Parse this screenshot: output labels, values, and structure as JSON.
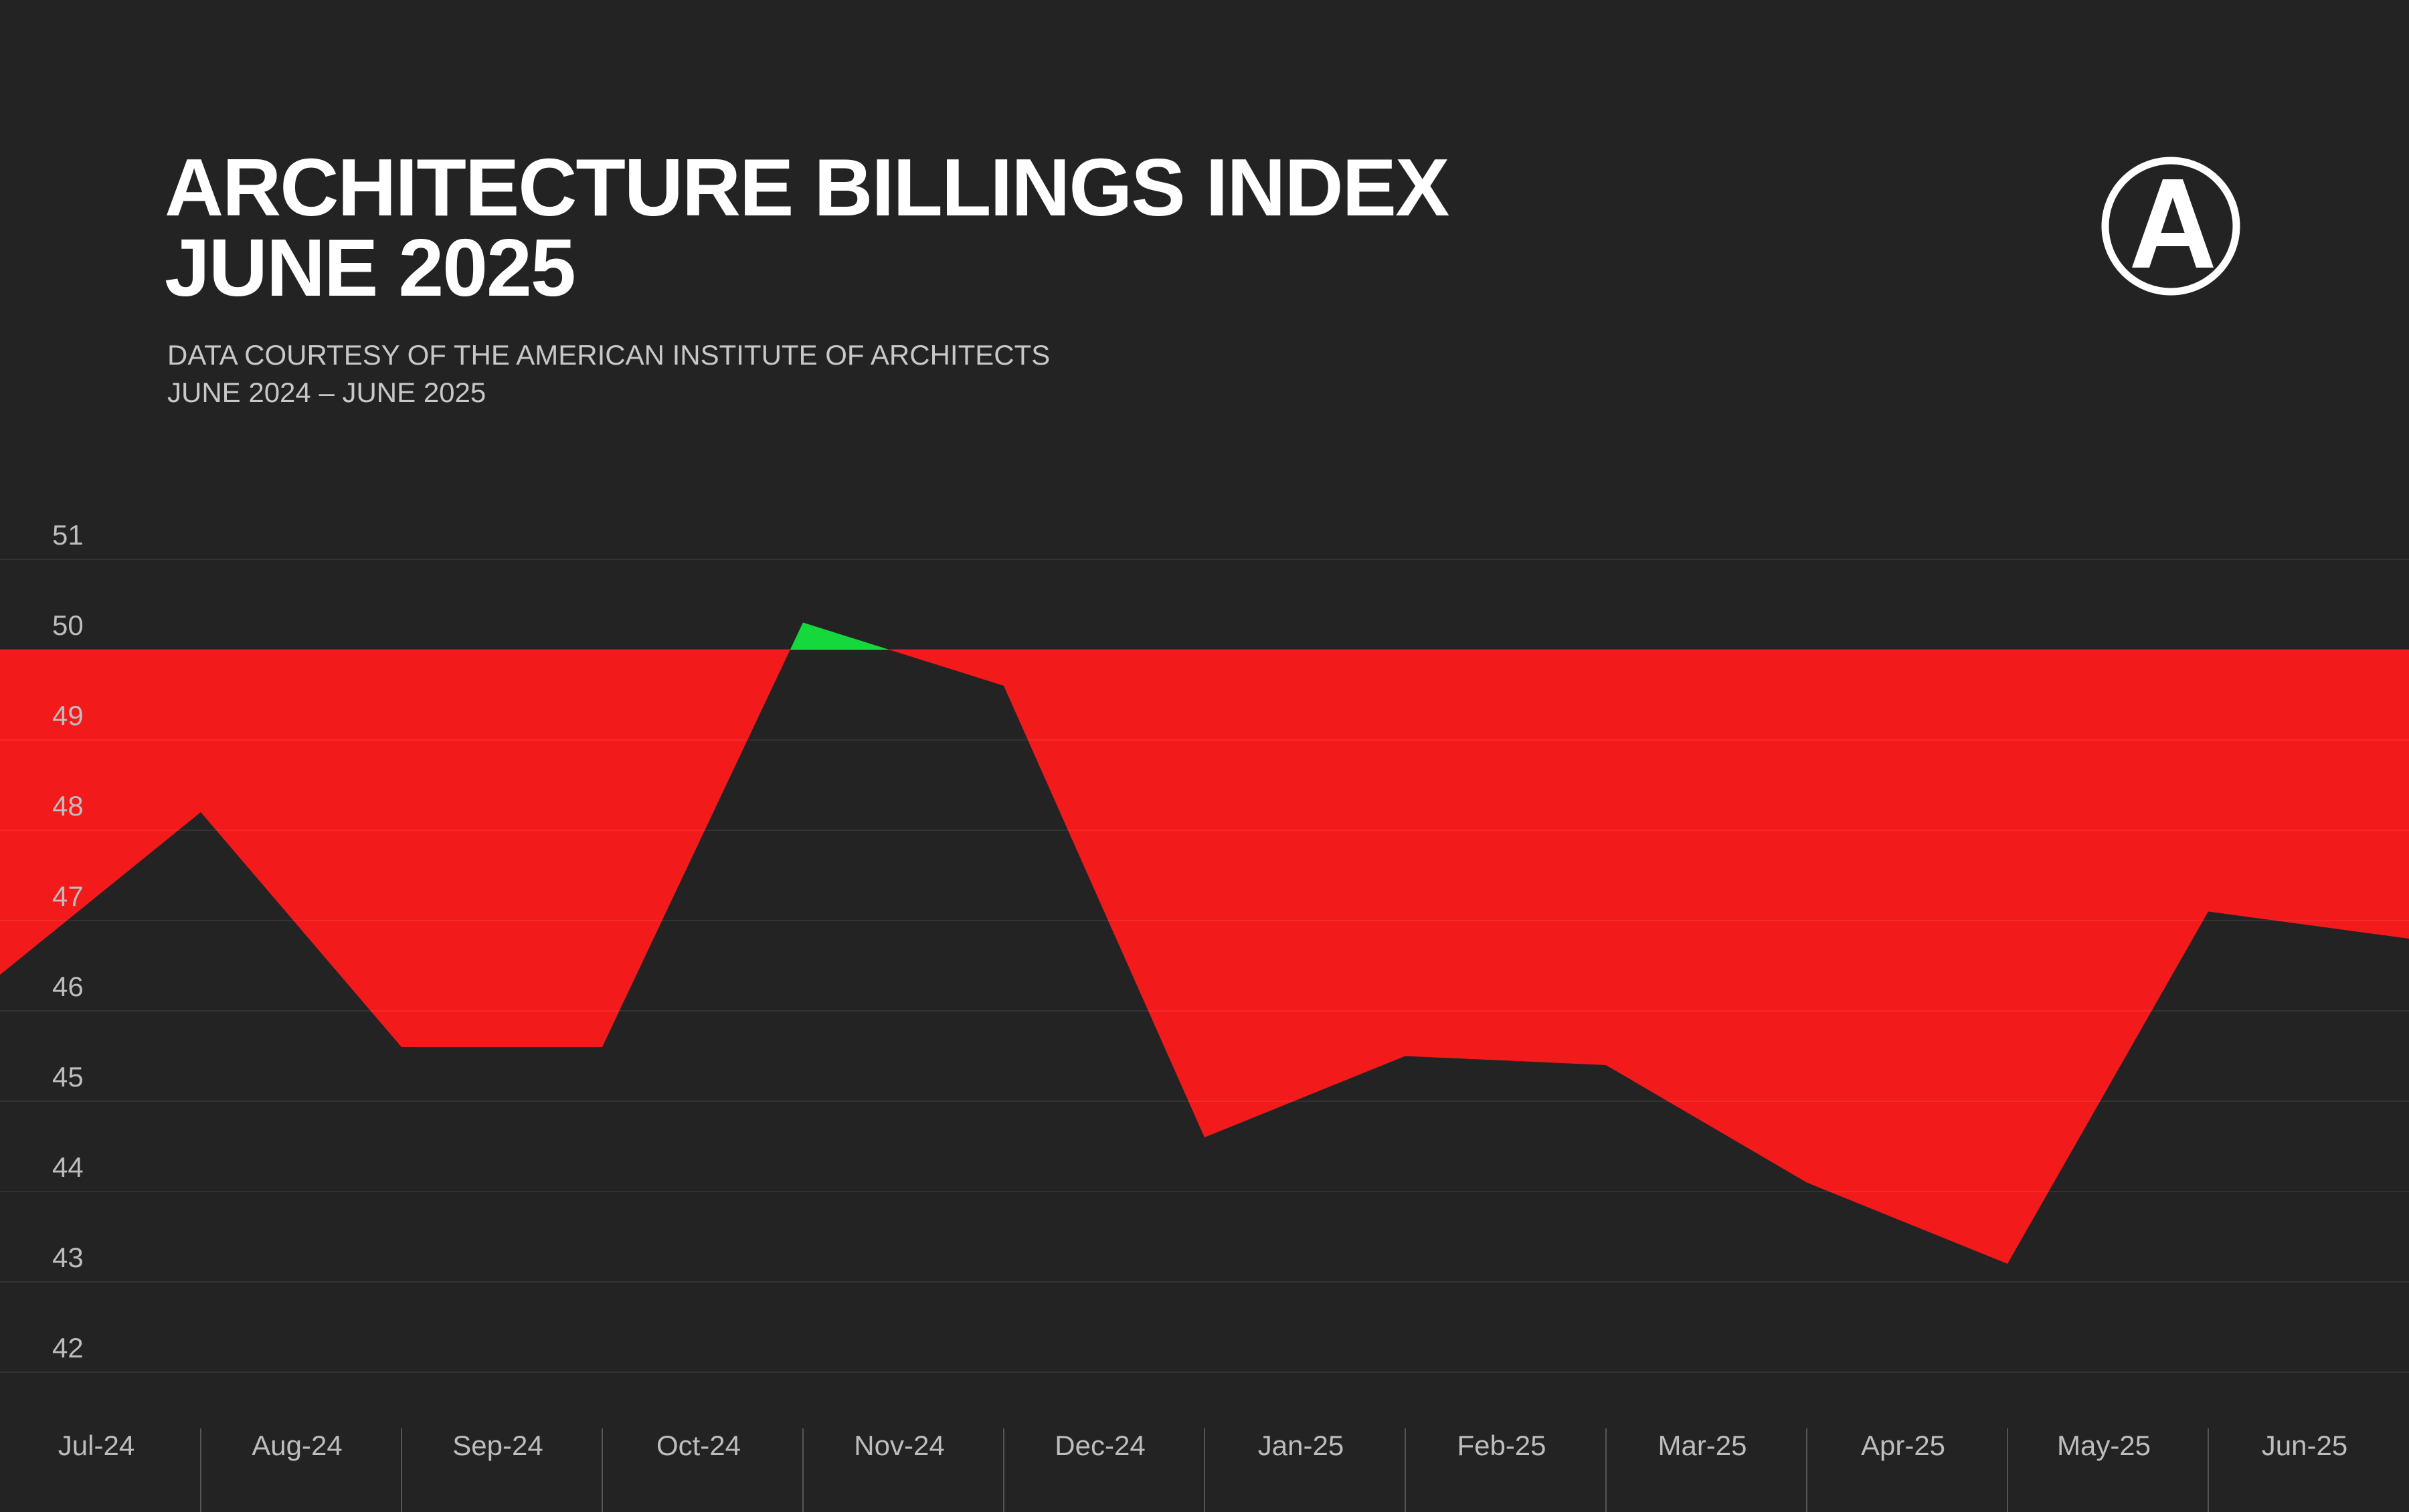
{
  "chart_data": {
    "type": "area",
    "title": [
      "ARCHITECTURE BILLINGS INDEX",
      "JUNE 2025"
    ],
    "subtitle": [
      "DATA COURTESY OF THE AMERICAN INSTITUTE OF ARCHITECTS",
      "JUNE 2024 – JUNE 2025"
    ],
    "categories": [
      null,
      "Jul-24",
      "Aug-24",
      "Sep-24",
      "Oct-24",
      "Nov-24",
      "Dec-24",
      "Jan-25",
      "Feb-25",
      "Mar-25",
      "Apr-25",
      "May-25",
      "Jun-25"
    ],
    "values": [
      46.4,
      48.2,
      45.6,
      45.6,
      50.3,
      49.6,
      44.6,
      45.5,
      45.4,
      44.1,
      43.2,
      47.1,
      46.8
    ],
    "baseline": 50,
    "below_color": "#f31a1c",
    "above_color": "#14d83c",
    "ylim": [
      42,
      51
    ],
    "yticks": [
      51,
      50,
      49,
      48,
      47,
      46,
      45,
      44,
      43,
      42
    ],
    "grid": true
  }
}
